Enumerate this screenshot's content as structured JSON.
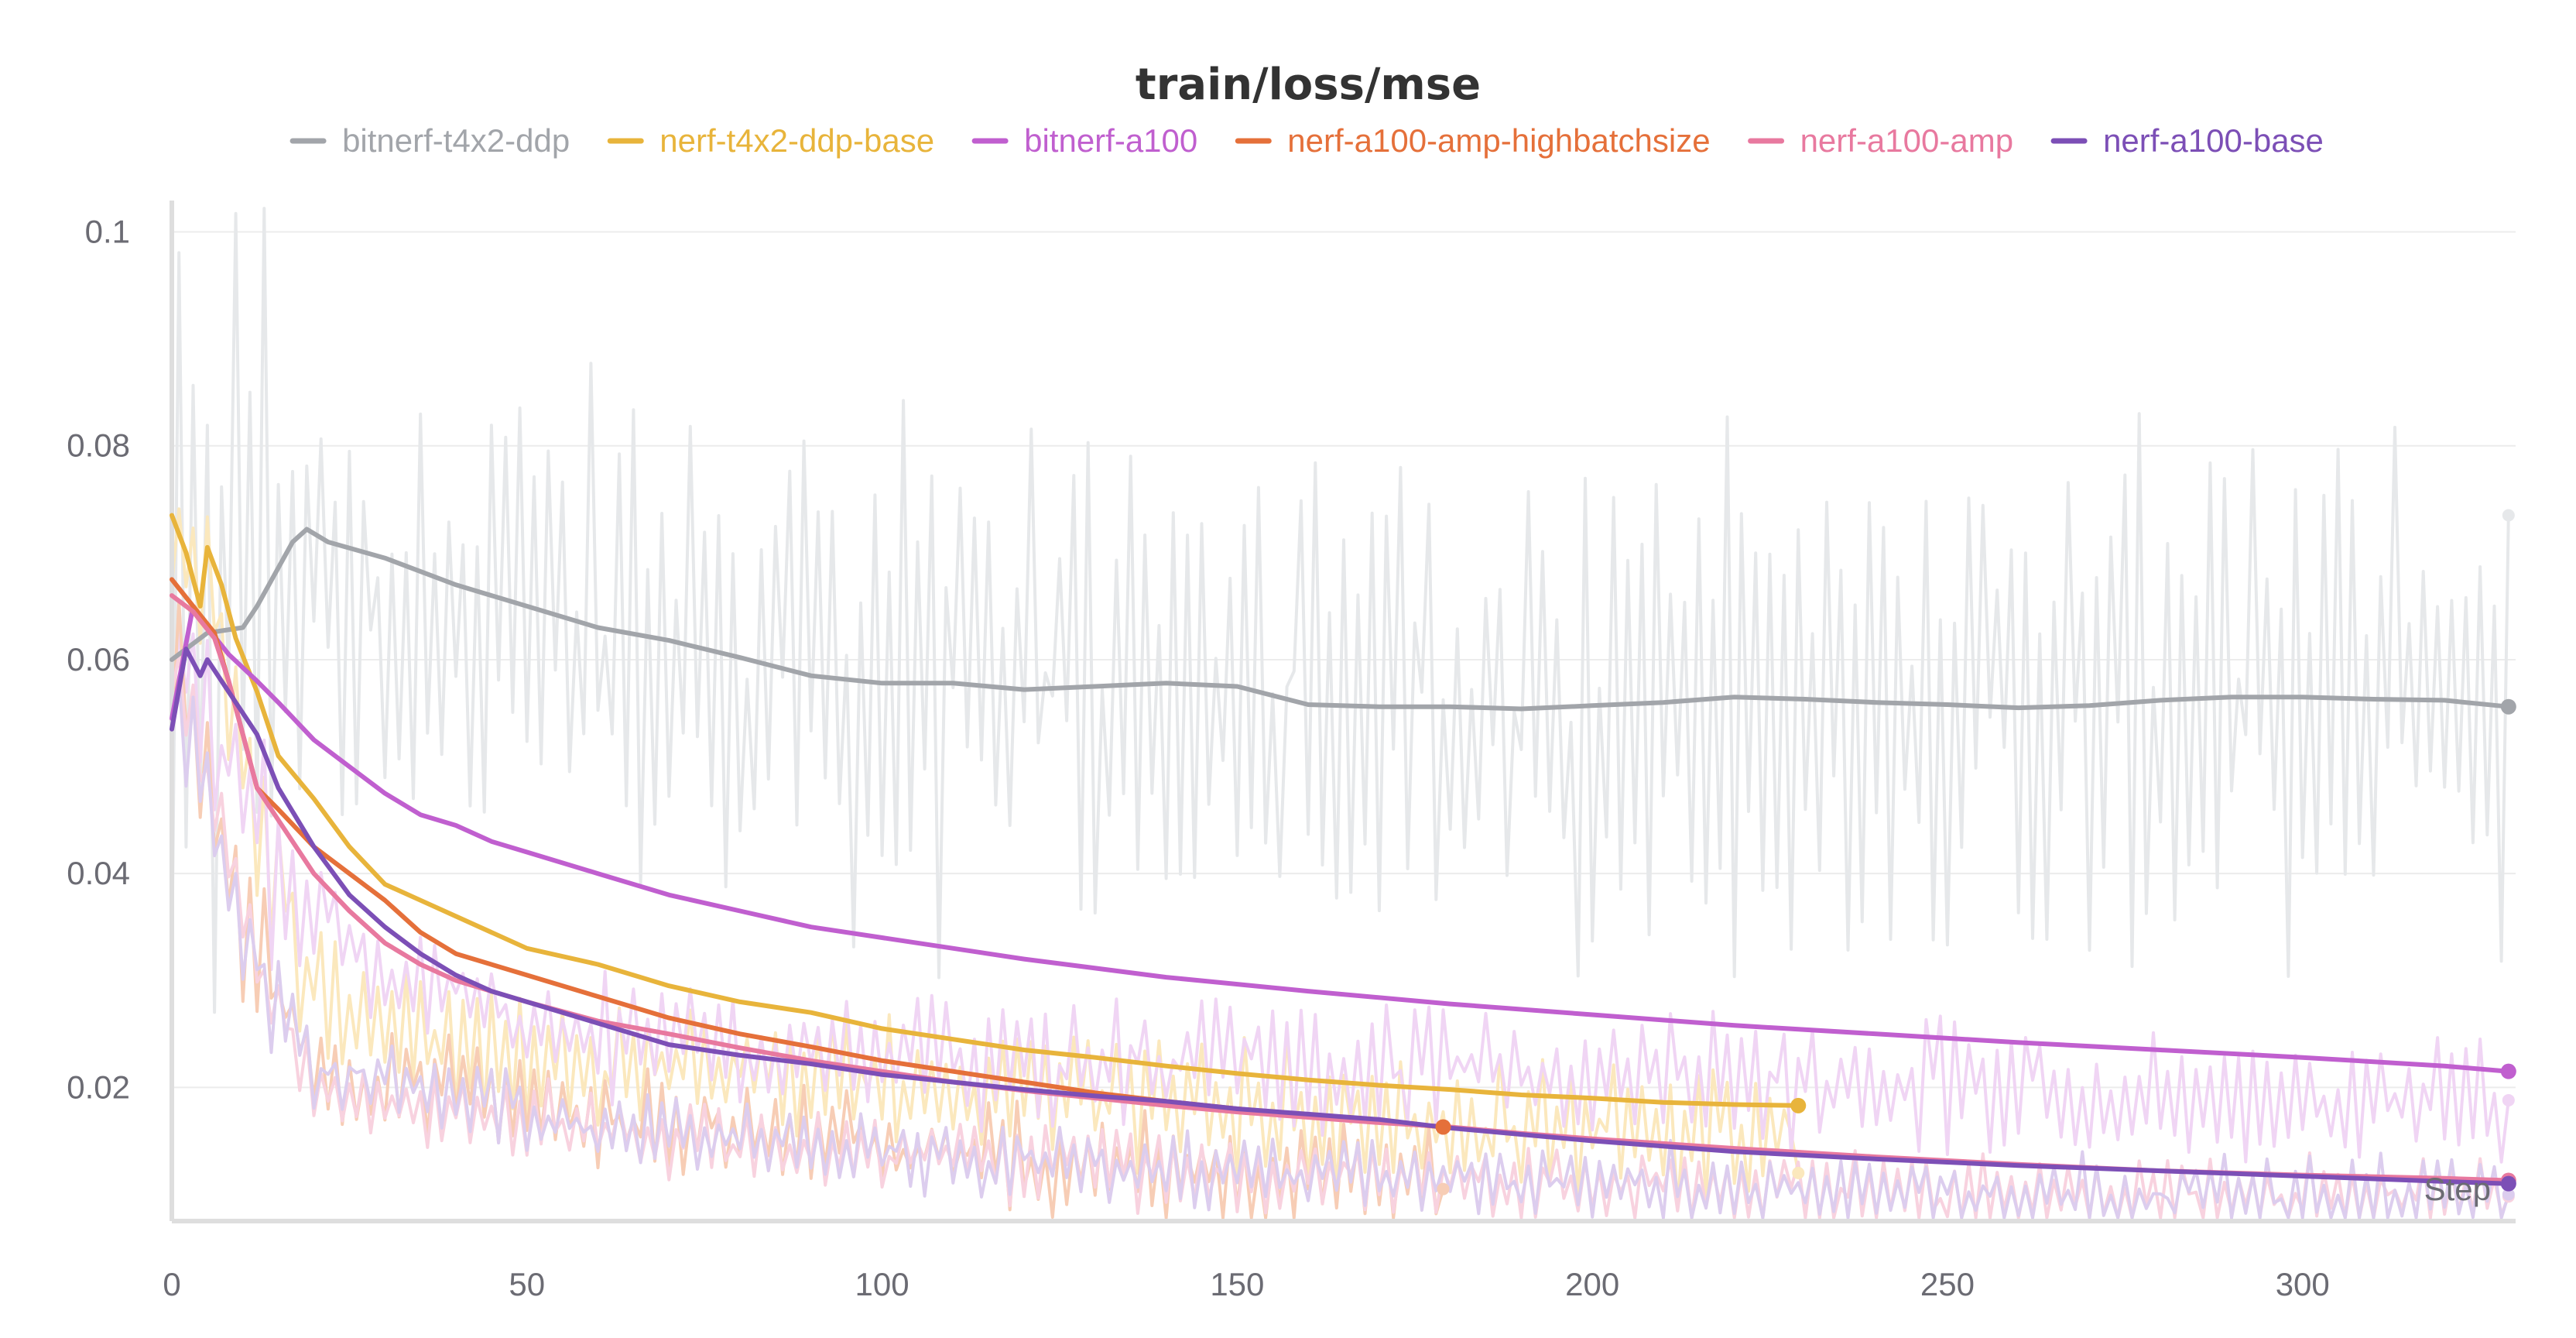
{
  "chart_data": {
    "type": "line",
    "title": "train/loss/mse",
    "xlabel": "Step",
    "ylabel": "",
    "xlim": [
      0,
      330
    ],
    "ylim": [
      0.0075,
      0.1025
    ],
    "x_ticks": [
      0,
      50,
      100,
      150,
      200,
      250,
      300
    ],
    "x_tick_labels": [
      "0",
      "50",
      "100",
      "150",
      "200",
      "250",
      "300"
    ],
    "y_ticks": [
      0.02,
      0.04,
      0.06,
      0.08,
      0.1
    ],
    "y_tick_labels": [
      "0.02",
      "0.04",
      "0.06",
      "0.08",
      "0.1"
    ],
    "grid": true,
    "legend_position": "top",
    "series": [
      {
        "name": "bitnerf-t4x2-ddp",
        "color": "#a2a5aa",
        "raw_color": "#e6e8ea",
        "final_step": 329,
        "final_value": 0.0556,
        "raw_last_value": 0.0735,
        "smoothed": [
          [
            0,
            0.06
          ],
          [
            5,
            0.0625
          ],
          [
            10,
            0.063
          ],
          [
            12,
            0.065
          ],
          [
            17,
            0.071
          ],
          [
            19,
            0.0722
          ],
          [
            22,
            0.071
          ],
          [
            30,
            0.0695
          ],
          [
            40,
            0.067
          ],
          [
            50,
            0.065
          ],
          [
            60,
            0.063
          ],
          [
            70,
            0.0618
          ],
          [
            80,
            0.0602
          ],
          [
            90,
            0.0585
          ],
          [
            100,
            0.0578
          ],
          [
            110,
            0.0578
          ],
          [
            120,
            0.0572
          ],
          [
            130,
            0.0575
          ],
          [
            140,
            0.0578
          ],
          [
            150,
            0.0575
          ],
          [
            160,
            0.0558
          ],
          [
            170,
            0.0556
          ],
          [
            180,
            0.0556
          ],
          [
            190,
            0.0554
          ],
          [
            200,
            0.0557
          ],
          [
            210,
            0.056
          ],
          [
            220,
            0.0565
          ],
          [
            230,
            0.0563
          ],
          [
            240,
            0.056
          ],
          [
            250,
            0.0558
          ],
          [
            260,
            0.0555
          ],
          [
            270,
            0.0557
          ],
          [
            280,
            0.0562
          ],
          [
            290,
            0.0565
          ],
          [
            300,
            0.0565
          ],
          [
            310,
            0.0563
          ],
          [
            320,
            0.0562
          ],
          [
            329,
            0.0556
          ]
        ],
        "raw_mean": [
          [
            0,
            0.06
          ],
          [
            20,
            0.068
          ],
          [
            40,
            0.062
          ],
          [
            60,
            0.062
          ],
          [
            80,
            0.058
          ],
          [
            100,
            0.058
          ],
          [
            150,
            0.057
          ],
          [
            200,
            0.056
          ],
          [
            250,
            0.056
          ],
          [
            300,
            0.056
          ],
          [
            329,
            0.056
          ]
        ],
        "raw_amplitude": 0.019
      },
      {
        "name": "nerf-t4x2-ddp-base",
        "color": "#e8b43b",
        "raw_color": "#fbe8bd",
        "final_step": 229,
        "final_value": 0.0183,
        "raw_last_value": 0.012,
        "smoothed": [
          [
            0,
            0.0735
          ],
          [
            2,
            0.07
          ],
          [
            4,
            0.065
          ],
          [
            5,
            0.0705
          ],
          [
            7,
            0.067
          ],
          [
            9,
            0.062
          ],
          [
            12,
            0.057
          ],
          [
            15,
            0.051
          ],
          [
            20,
            0.047
          ],
          [
            25,
            0.0425
          ],
          [
            30,
            0.039
          ],
          [
            35,
            0.0375
          ],
          [
            40,
            0.036
          ],
          [
            45,
            0.0345
          ],
          [
            50,
            0.033
          ],
          [
            60,
            0.0315
          ],
          [
            70,
            0.0295
          ],
          [
            80,
            0.028
          ],
          [
            90,
            0.027
          ],
          [
            100,
            0.0255
          ],
          [
            110,
            0.0245
          ],
          [
            120,
            0.0235
          ],
          [
            130,
            0.0228
          ],
          [
            140,
            0.022
          ],
          [
            150,
            0.0213
          ],
          [
            160,
            0.0207
          ],
          [
            170,
            0.0202
          ],
          [
            180,
            0.0198
          ],
          [
            190,
            0.0193
          ],
          [
            200,
            0.019
          ],
          [
            210,
            0.0186
          ],
          [
            220,
            0.0184
          ],
          [
            229,
            0.0183
          ]
        ],
        "raw_mean": [
          [
            0,
            0.07
          ],
          [
            4,
            0.07
          ],
          [
            10,
            0.05
          ],
          [
            20,
            0.028
          ],
          [
            40,
            0.024
          ],
          [
            60,
            0.022
          ],
          [
            100,
            0.02
          ],
          [
            150,
            0.018
          ],
          [
            200,
            0.016
          ],
          [
            229,
            0.015
          ]
        ],
        "raw_amplitude": 0.005
      },
      {
        "name": "bitnerf-a100",
        "color": "#c05fcf",
        "raw_color": "#f0d5f4",
        "final_step": 329,
        "final_value": 0.0215,
        "raw_last_value": 0.0188,
        "smoothed": [
          [
            0,
            0.0545
          ],
          [
            3,
            0.065
          ],
          [
            5,
            0.063
          ],
          [
            8,
            0.0605
          ],
          [
            12,
            0.058
          ],
          [
            15,
            0.056
          ],
          [
            20,
            0.0525
          ],
          [
            25,
            0.05
          ],
          [
            30,
            0.0475
          ],
          [
            35,
            0.0455
          ],
          [
            40,
            0.0445
          ],
          [
            45,
            0.043
          ],
          [
            50,
            0.042
          ],
          [
            60,
            0.04
          ],
          [
            70,
            0.038
          ],
          [
            80,
            0.0365
          ],
          [
            90,
            0.035
          ],
          [
            100,
            0.034
          ],
          [
            120,
            0.032
          ],
          [
            140,
            0.0303
          ],
          [
            160,
            0.029
          ],
          [
            180,
            0.0278
          ],
          [
            200,
            0.0268
          ],
          [
            220,
            0.0258
          ],
          [
            240,
            0.025
          ],
          [
            260,
            0.0242
          ],
          [
            280,
            0.0235
          ],
          [
            300,
            0.0228
          ],
          [
            320,
            0.022
          ],
          [
            329,
            0.0215
          ]
        ],
        "raw_mean": [
          [
            0,
            0.06
          ],
          [
            5,
            0.055
          ],
          [
            15,
            0.04
          ],
          [
            30,
            0.03
          ],
          [
            60,
            0.025
          ],
          [
            100,
            0.023
          ],
          [
            150,
            0.022
          ],
          [
            200,
            0.021
          ],
          [
            250,
            0.02
          ],
          [
            300,
            0.019
          ],
          [
            329,
            0.019
          ]
        ],
        "raw_amplitude": 0.005
      },
      {
        "name": "nerf-a100-amp-highbatchsize",
        "color": "#e5703a",
        "raw_color": "#f7cdb5",
        "final_step": 179,
        "final_value": 0.0163,
        "raw_last_value": 0.0105,
        "smoothed": [
          [
            0,
            0.0675
          ],
          [
            3,
            0.065
          ],
          [
            6,
            0.0625
          ],
          [
            8,
            0.058
          ],
          [
            10,
            0.053
          ],
          [
            12,
            0.048
          ],
          [
            15,
            0.046
          ],
          [
            20,
            0.0425
          ],
          [
            25,
            0.04
          ],
          [
            30,
            0.0375
          ],
          [
            35,
            0.0345
          ],
          [
            40,
            0.0325
          ],
          [
            50,
            0.0305
          ],
          [
            60,
            0.0285
          ],
          [
            70,
            0.0265
          ],
          [
            80,
            0.025
          ],
          [
            90,
            0.0238
          ],
          [
            100,
            0.0225
          ],
          [
            110,
            0.0215
          ],
          [
            120,
            0.0205
          ],
          [
            130,
            0.0195
          ],
          [
            140,
            0.0187
          ],
          [
            150,
            0.018
          ],
          [
            160,
            0.0174
          ],
          [
            170,
            0.0168
          ],
          [
            179,
            0.0163
          ]
        ],
        "raw_mean": [
          [
            0,
            0.06
          ],
          [
            10,
            0.035
          ],
          [
            20,
            0.022
          ],
          [
            60,
            0.017
          ],
          [
            100,
            0.014
          ],
          [
            150,
            0.012
          ],
          [
            179,
            0.011
          ]
        ],
        "raw_amplitude": 0.004
      },
      {
        "name": "nerf-a100-amp",
        "color": "#e8799f",
        "raw_color": "#f8d2df",
        "final_step": 329,
        "final_value": 0.0113,
        "raw_last_value": 0.0098,
        "smoothed": [
          [
            0,
            0.066
          ],
          [
            3,
            0.0645
          ],
          [
            6,
            0.062
          ],
          [
            8,
            0.058
          ],
          [
            10,
            0.053
          ],
          [
            12,
            0.048
          ],
          [
            15,
            0.045
          ],
          [
            20,
            0.04
          ],
          [
            25,
            0.0365
          ],
          [
            30,
            0.0335
          ],
          [
            35,
            0.0315
          ],
          [
            40,
            0.03
          ],
          [
            50,
            0.028
          ],
          [
            60,
            0.0262
          ],
          [
            70,
            0.025
          ],
          [
            80,
            0.0237
          ],
          [
            90,
            0.0225
          ],
          [
            100,
            0.0215
          ],
          [
            110,
            0.0205
          ],
          [
            120,
            0.0197
          ],
          [
            130,
            0.019
          ],
          [
            140,
            0.0183
          ],
          [
            150,
            0.0177
          ],
          [
            160,
            0.0172
          ],
          [
            170,
            0.0167
          ],
          [
            180,
            0.0163
          ],
          [
            190,
            0.0157
          ],
          [
            200,
            0.0152
          ],
          [
            220,
            0.0143
          ],
          [
            240,
            0.0135
          ],
          [
            260,
            0.0128
          ],
          [
            280,
            0.0122
          ],
          [
            300,
            0.0118
          ],
          [
            320,
            0.0115
          ],
          [
            329,
            0.0113
          ]
        ],
        "raw_mean": [
          [
            0,
            0.06
          ],
          [
            10,
            0.035
          ],
          [
            20,
            0.02
          ],
          [
            60,
            0.016
          ],
          [
            100,
            0.014
          ],
          [
            150,
            0.012
          ],
          [
            200,
            0.011
          ],
          [
            250,
            0.01
          ],
          [
            300,
            0.01
          ],
          [
            329,
            0.01
          ]
        ],
        "raw_amplitude": 0.003
      },
      {
        "name": "nerf-a100-base",
        "color": "#7c4fb6",
        "raw_color": "#dccdee",
        "final_step": 329,
        "final_value": 0.011,
        "raw_last_value": 0.01,
        "smoothed": [
          [
            0,
            0.0535
          ],
          [
            2,
            0.061
          ],
          [
            4,
            0.0585
          ],
          [
            5,
            0.06
          ],
          [
            8,
            0.057
          ],
          [
            12,
            0.053
          ],
          [
            15,
            0.048
          ],
          [
            20,
            0.0425
          ],
          [
            25,
            0.038
          ],
          [
            30,
            0.035
          ],
          [
            35,
            0.0325
          ],
          [
            40,
            0.0305
          ],
          [
            45,
            0.029
          ],
          [
            50,
            0.028
          ],
          [
            60,
            0.026
          ],
          [
            70,
            0.024
          ],
          [
            80,
            0.023
          ],
          [
            90,
            0.0222
          ],
          [
            100,
            0.0212
          ],
          [
            110,
            0.0205
          ],
          [
            120,
            0.0198
          ],
          [
            130,
            0.0192
          ],
          [
            140,
            0.0187
          ],
          [
            150,
            0.018
          ],
          [
            160,
            0.0175
          ],
          [
            170,
            0.017
          ],
          [
            180,
            0.0162
          ],
          [
            200,
            0.015
          ],
          [
            220,
            0.014
          ],
          [
            240,
            0.0133
          ],
          [
            260,
            0.0127
          ],
          [
            280,
            0.0122
          ],
          [
            300,
            0.0117
          ],
          [
            320,
            0.0112
          ],
          [
            329,
            0.011
          ]
        ],
        "raw_mean": [
          [
            0,
            0.058
          ],
          [
            10,
            0.035
          ],
          [
            20,
            0.022
          ],
          [
            60,
            0.016
          ],
          [
            100,
            0.014
          ],
          [
            150,
            0.012
          ],
          [
            200,
            0.011
          ],
          [
            250,
            0.01
          ],
          [
            300,
            0.01
          ],
          [
            329,
            0.01
          ]
        ],
        "raw_amplitude": 0.003
      }
    ]
  }
}
